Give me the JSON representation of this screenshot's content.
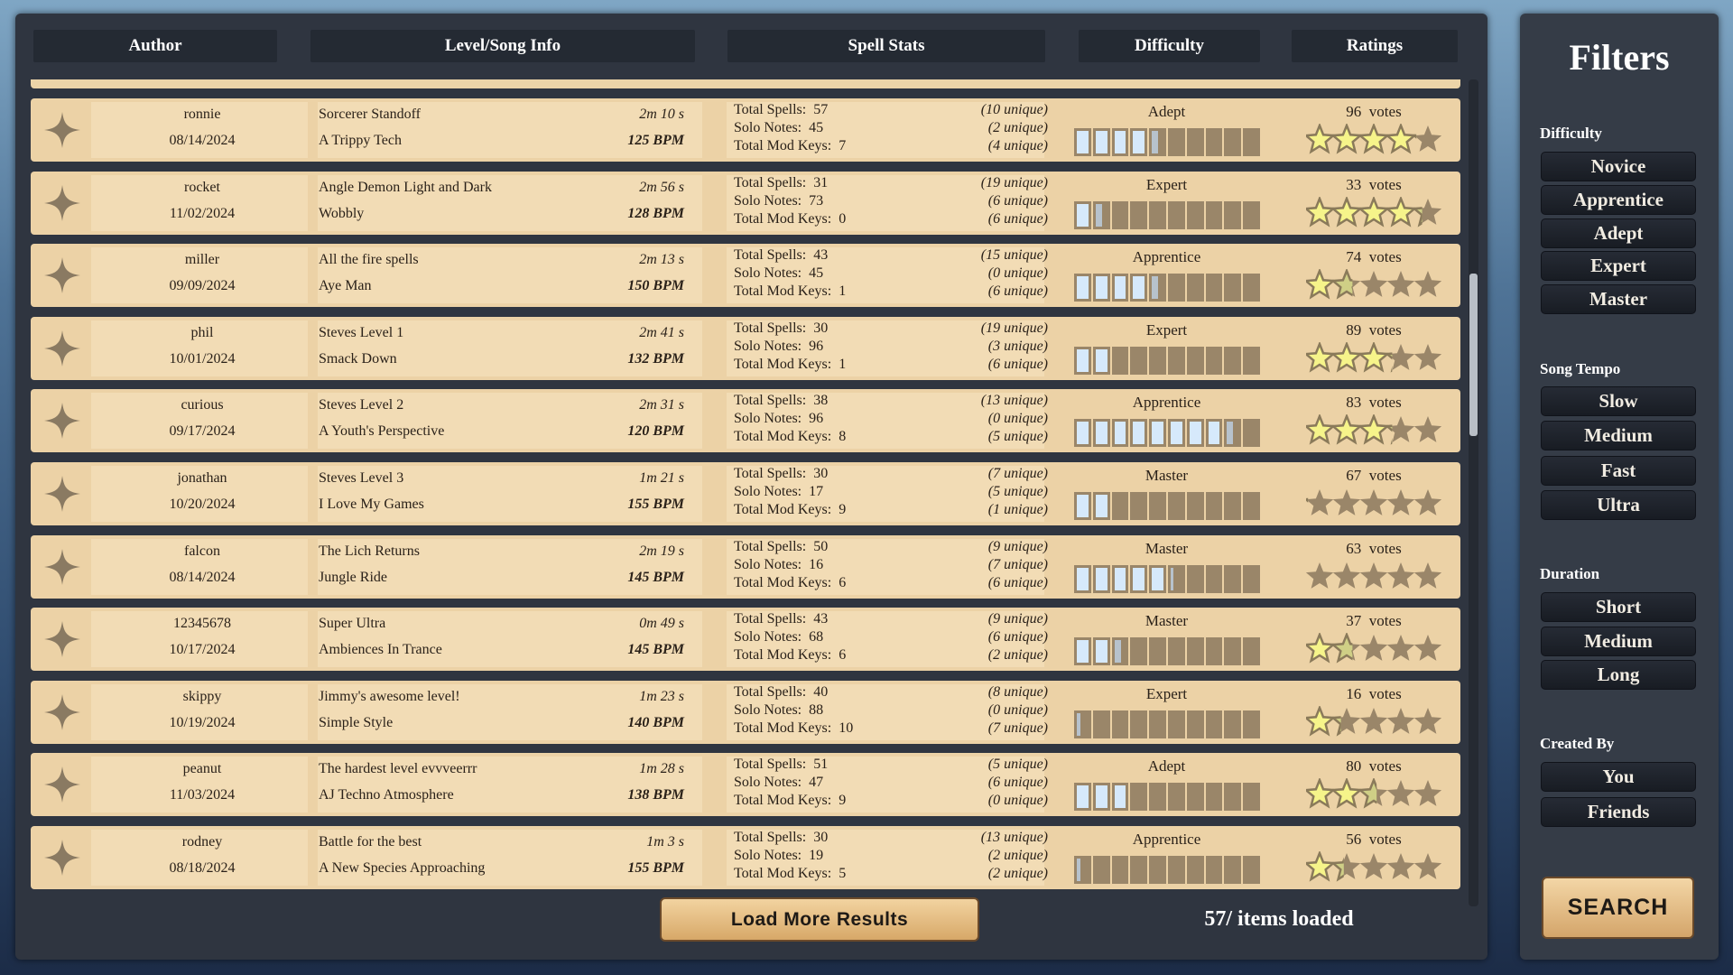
{
  "header": {
    "author": "Author",
    "level": "Level/Song Info",
    "spell": "Spell Stats",
    "difficulty": "Difficulty",
    "ratings": "Ratings"
  },
  "labels": {
    "total_spells": "Total Spells:",
    "solo_notes": "Solo Notes:",
    "mod_keys": "Total Mod Keys:",
    "votes": "votes"
  },
  "colors": {
    "star_fill": "#f6f48a",
    "star_empty": "#9a8669",
    "bar_fill": "#d6e9fb",
    "row_bg": "#ecd2a6"
  },
  "rows": [
    {
      "author": "ronnie",
      "date": "08/14/2024",
      "level": "Sorcerer Standoff",
      "duration": "2m 10 s",
      "song": "A Trippy Tech",
      "bpm": "125 BPM",
      "total_spells": "57",
      "spells_unique": "(10 unique)",
      "solo_notes": "45",
      "solo_unique": "(2 unique)",
      "mod_keys": "7",
      "mod_unique": "(4 unique)",
      "difficulty": "Adept",
      "difficulty_fill": 4.5,
      "votes": "96",
      "rating": 4.1
    },
    {
      "author": "rocket",
      "date": "11/02/2024",
      "level": "Angle Demon Light and Dark",
      "duration": "2m 56 s",
      "song": "Wobbly",
      "bpm": "128 BPM",
      "total_spells": "31",
      "spells_unique": "(19 unique)",
      "solo_notes": "73",
      "solo_unique": "(6 unique)",
      "mod_keys": "0",
      "mod_unique": "(6 unique)",
      "difficulty": "Expert",
      "difficulty_fill": 1.5,
      "votes": "33",
      "rating": 4.3
    },
    {
      "author": "miller",
      "date": "09/09/2024",
      "level": "All the fire spells",
      "duration": "2m 13 s",
      "song": "Aye Man",
      "bpm": "150 BPM",
      "total_spells": "43",
      "spells_unique": "(15 unique)",
      "solo_notes": "45",
      "solo_unique": "(0 unique)",
      "mod_keys": "1",
      "mod_unique": "(6 unique)",
      "difficulty": "Apprentice",
      "difficulty_fill": 4.5,
      "votes": "74",
      "rating": 1.7
    },
    {
      "author": "phil",
      "date": "10/01/2024",
      "level": "Steves Level 1",
      "duration": "2m 41 s",
      "song": "Smack Down",
      "bpm": "132 BPM",
      "total_spells": "30",
      "spells_unique": "(19 unique)",
      "solo_notes": "96",
      "solo_unique": "(3 unique)",
      "mod_keys": "1",
      "mod_unique": "(6 unique)",
      "difficulty": "Expert",
      "difficulty_fill": 2,
      "votes": "89",
      "rating": 3.2
    },
    {
      "author": "curious",
      "date": "09/17/2024",
      "level": "Steves Level 2",
      "duration": "2m 31 s",
      "song": "A Youth's Perspective",
      "bpm": "120 BPM",
      "total_spells": "38",
      "spells_unique": "(13 unique)",
      "solo_notes": "96",
      "solo_unique": "(0 unique)",
      "mod_keys": "8",
      "mod_unique": "(5 unique)",
      "difficulty": "Apprentice",
      "difficulty_fill": 8.5,
      "votes": "83",
      "rating": 3.2
    },
    {
      "author": "jonathan",
      "date": "10/20/2024",
      "level": "Steves Level 3",
      "duration": "1m 21 s",
      "song": "I Love My Games",
      "bpm": "155 BPM",
      "total_spells": "30",
      "spells_unique": "(7 unique)",
      "solo_notes": "17",
      "solo_unique": "(5 unique)",
      "mod_keys": "9",
      "mod_unique": "(1 unique)",
      "difficulty": "Master",
      "difficulty_fill": 2,
      "votes": "67",
      "rating": 0.1
    },
    {
      "author": "falcon",
      "date": "08/14/2024",
      "level": "The Lich Returns",
      "duration": "2m 19 s",
      "song": "Jungle Ride",
      "bpm": "145 BPM",
      "total_spells": "50",
      "spells_unique": "(9 unique)",
      "solo_notes": "16",
      "solo_unique": "(7 unique)",
      "mod_keys": "6",
      "mod_unique": "(6 unique)",
      "difficulty": "Master",
      "difficulty_fill": 5.2,
      "votes": "63",
      "rating": 0
    },
    {
      "author": "12345678",
      "date": "10/17/2024",
      "level": "Super Ultra",
      "duration": "0m 49 s",
      "song": "Ambiences In Trance",
      "bpm": "145 BPM",
      "total_spells": "43",
      "spells_unique": "(9 unique)",
      "solo_notes": "68",
      "solo_unique": "(6 unique)",
      "mod_keys": "6",
      "mod_unique": "(2 unique)",
      "difficulty": "Master",
      "difficulty_fill": 2.5,
      "votes": "37",
      "rating": 1.7
    },
    {
      "author": "skippy",
      "date": "10/19/2024",
      "level": "Jimmy's awesome level!",
      "duration": "1m 23 s",
      "song": "Simple Style",
      "bpm": "140 BPM",
      "total_spells": "40",
      "spells_unique": "(8 unique)",
      "solo_notes": "88",
      "solo_unique": "(0 unique)",
      "mod_keys": "10",
      "mod_unique": "(7 unique)",
      "difficulty": "Expert",
      "difficulty_fill": 0.3,
      "votes": "16",
      "rating": 1.3
    },
    {
      "author": "peanut",
      "date": "11/03/2024",
      "level": "The hardest level evvveerrr",
      "duration": "1m 28 s",
      "song": "AJ Techno Atmosphere",
      "bpm": "138 BPM",
      "total_spells": "51",
      "spells_unique": "(5 unique)",
      "solo_notes": "47",
      "solo_unique": "(6 unique)",
      "mod_keys": "9",
      "mod_unique": "(0 unique)",
      "difficulty": "Adept",
      "difficulty_fill": 3,
      "votes": "80",
      "rating": 2.6
    },
    {
      "author": "rodney",
      "date": "08/18/2024",
      "level": "Battle for the best",
      "duration": "1m 3 s",
      "song": "A New Species Approaching",
      "bpm": "155 BPM",
      "total_spells": "30",
      "spells_unique": "(13 unique)",
      "solo_notes": "19",
      "solo_unique": "(2 unique)",
      "mod_keys": "5",
      "mod_unique": "(2 unique)",
      "difficulty": "Apprentice",
      "difficulty_fill": 0.3,
      "votes": "56",
      "rating": 1.4
    }
  ],
  "footer": {
    "load_more": "Load More Results",
    "items_loaded": "57/ items loaded"
  },
  "filters": {
    "title": "Filters",
    "groups": [
      {
        "label": "Difficulty",
        "options": [
          "Novice",
          "Apprentice",
          "Adept",
          "Expert",
          "Master"
        ]
      },
      {
        "label": "Song Tempo",
        "options": [
          "Slow",
          "Medium",
          "Fast",
          "Ultra"
        ]
      },
      {
        "label": "Duration",
        "options": [
          "Short",
          "Medium",
          "Long"
        ]
      },
      {
        "label": "Created By",
        "options": [
          "You",
          "Friends"
        ]
      }
    ],
    "search": "SEARCH"
  }
}
